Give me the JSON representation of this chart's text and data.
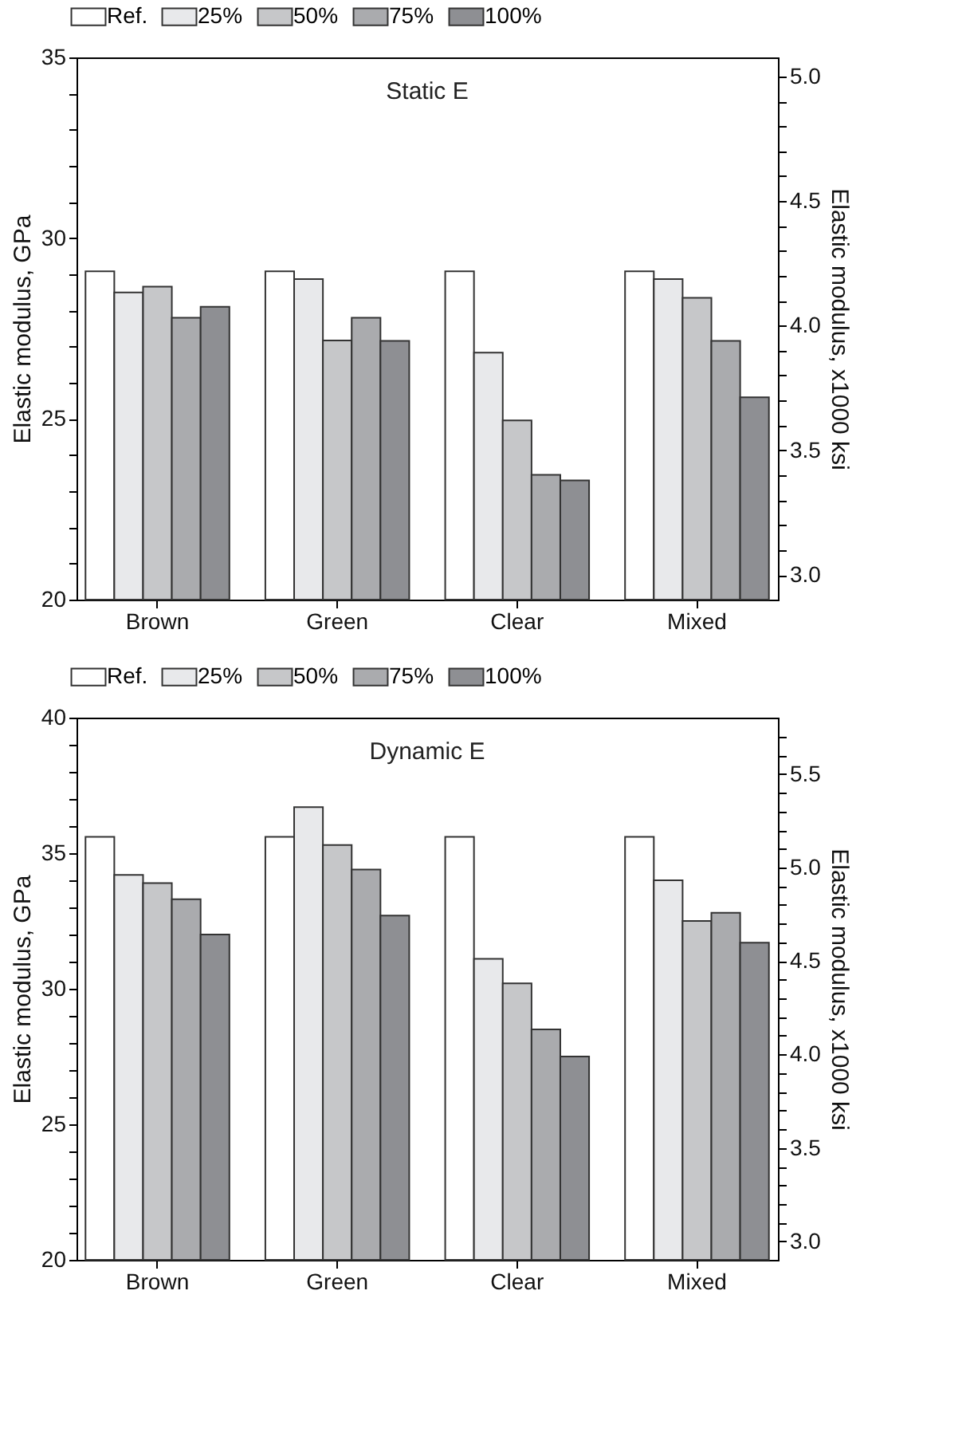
{
  "chart_data": [
    {
      "type": "bar",
      "title": "Static E",
      "ylabel": "Elastic modulus, GPa",
      "y2label": "Elastic modulus, x1000 ksi",
      "legend": "top",
      "categories": [
        "Brown",
        "Green",
        "Clear",
        "Mixed"
      ],
      "series": [
        {
          "name": "Ref.",
          "color": "#ffffff",
          "values": [
            29.08,
            29.08,
            29.08,
            29.08
          ]
        },
        {
          "name": "25%",
          "color": "#e8e9eb",
          "values": [
            28.5,
            28.87,
            26.83,
            28.87
          ]
        },
        {
          "name": "50%",
          "color": "#c6c7c9",
          "values": [
            28.66,
            27.17,
            24.96,
            28.35
          ]
        },
        {
          "name": "75%",
          "color": "#aaabae",
          "values": [
            27.8,
            27.8,
            23.45,
            27.16
          ]
        },
        {
          "name": "100%",
          "color": "#8e8f93",
          "values": [
            28.1,
            27.16,
            23.3,
            25.6
          ]
        }
      ],
      "ylim": [
        20,
        35
      ],
      "yticks": [
        20,
        {
          "value": 21,
          "label": null
        },
        {
          "value": 22,
          "label": null
        },
        {
          "value": 23,
          "label": null
        },
        {
          "value": 24,
          "label": null
        },
        25,
        {
          "value": 26,
          "label": null
        },
        {
          "value": 27,
          "label": null
        },
        {
          "value": 28,
          "label": null
        },
        {
          "value": 29,
          "label": null
        },
        30,
        {
          "value": 31,
          "label": null
        },
        {
          "value": 32,
          "label": null
        },
        {
          "value": 33,
          "label": null
        },
        {
          "value": 34,
          "label": null
        },
        35
      ],
      "y2lim": [
        2.901,
        5.076
      ],
      "y2ticks": [
        {
          "value": 3.0,
          "label": "3.0"
        },
        {
          "value": 3.1,
          "label": null
        },
        {
          "value": 3.2,
          "label": null
        },
        {
          "value": 3.3,
          "label": null
        },
        {
          "value": 3.4,
          "label": null
        },
        3.5,
        {
          "value": 3.6,
          "label": null
        },
        {
          "value": 3.7,
          "label": null
        },
        {
          "value": 3.8,
          "label": null
        },
        {
          "value": 3.9,
          "label": null
        },
        {
          "value": 4.0,
          "label": "4.0"
        },
        {
          "value": 4.1,
          "label": null
        },
        {
          "value": 4.2,
          "label": null
        },
        {
          "value": 4.3,
          "label": null
        },
        {
          "value": 4.4,
          "label": null
        },
        4.5,
        {
          "value": 4.6,
          "label": null
        },
        {
          "value": 4.7,
          "label": null
        },
        {
          "value": 4.8,
          "label": null
        },
        {
          "value": 4.9,
          "label": null
        },
        {
          "value": 5.0,
          "label": "5.0"
        }
      ]
    },
    {
      "type": "bar",
      "title": "Dynamic E",
      "ylabel": "Elastic modulus, GPa",
      "y2label": "Elastic modulus, x1000 ksi",
      "legend": "top",
      "categories": [
        "Brown",
        "Green",
        "Clear",
        "Mixed"
      ],
      "series": [
        {
          "name": "Ref.",
          "color": "#ffffff",
          "values": [
            35.6,
            35.6,
            35.6,
            35.6
          ]
        },
        {
          "name": "25%",
          "color": "#e8e9eb",
          "values": [
            34.2,
            36.7,
            31.1,
            34.0
          ]
        },
        {
          "name": "50%",
          "color": "#c6c7c9",
          "values": [
            33.9,
            35.3,
            30.2,
            32.5
          ]
        },
        {
          "name": "75%",
          "color": "#aaabae",
          "values": [
            33.3,
            34.4,
            28.5,
            32.8
          ]
        },
        {
          "name": "100%",
          "color": "#8e8f93",
          "values": [
            32.0,
            32.7,
            27.5,
            31.7
          ]
        }
      ],
      "ylim": [
        20,
        40
      ],
      "yticks": [
        20,
        {
          "value": 21,
          "label": null
        },
        {
          "value": 22,
          "label": null
        },
        {
          "value": 23,
          "label": null
        },
        {
          "value": 24,
          "label": null
        },
        25,
        {
          "value": 26,
          "label": null
        },
        {
          "value": 27,
          "label": null
        },
        {
          "value": 28,
          "label": null
        },
        {
          "value": 29,
          "label": null
        },
        30,
        {
          "value": 31,
          "label": null
        },
        {
          "value": 32,
          "label": null
        },
        {
          "value": 33,
          "label": null
        },
        {
          "value": 34,
          "label": null
        },
        35,
        {
          "value": 36,
          "label": null
        },
        {
          "value": 37,
          "label": null
        },
        {
          "value": 38,
          "label": null
        },
        {
          "value": 39,
          "label": null
        },
        40
      ],
      "y2lim": [
        2.901,
        5.802
      ],
      "y2ticks": [
        {
          "value": 3.0,
          "label": "3.0"
        },
        {
          "value": 3.1,
          "label": null
        },
        {
          "value": 3.2,
          "label": null
        },
        {
          "value": 3.3,
          "label": null
        },
        {
          "value": 3.4,
          "label": null
        },
        3.5,
        {
          "value": 3.6,
          "label": null
        },
        {
          "value": 3.7,
          "label": null
        },
        {
          "value": 3.8,
          "label": null
        },
        {
          "value": 3.9,
          "label": null
        },
        {
          "value": 4.0,
          "label": "4.0"
        },
        {
          "value": 4.1,
          "label": null
        },
        {
          "value": 4.2,
          "label": null
        },
        {
          "value": 4.3,
          "label": null
        },
        {
          "value": 4.4,
          "label": null
        },
        4.5,
        {
          "value": 4.6,
          "label": null
        },
        {
          "value": 4.7,
          "label": null
        },
        {
          "value": 4.8,
          "label": null
        },
        {
          "value": 4.9,
          "label": null
        },
        {
          "value": 5.0,
          "label": "5.0"
        },
        {
          "value": 5.1,
          "label": null
        },
        {
          "value": 5.2,
          "label": null
        },
        {
          "value": 5.3,
          "label": null
        },
        {
          "value": 5.4,
          "label": null
        },
        5.5,
        {
          "value": 5.6,
          "label": null
        },
        {
          "value": 5.7,
          "label": null
        }
      ]
    }
  ]
}
